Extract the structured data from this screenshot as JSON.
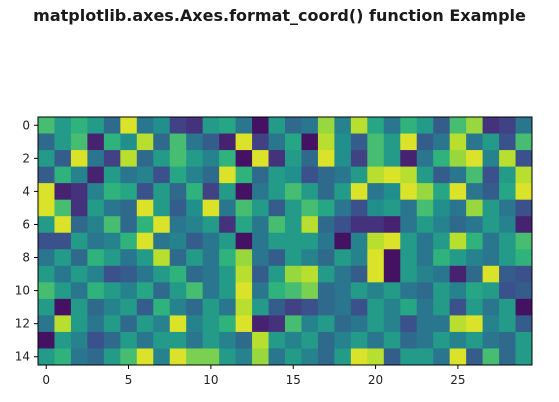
{
  "chart_data": {
    "type": "heatmap",
    "title": "matplotlib.axes.Axes.format_coord() function Example",
    "colormap": "viridis",
    "rows": 15,
    "cols": 30,
    "x_ticks": [
      0,
      5,
      10,
      15,
      20,
      25
    ],
    "y_ticks": [
      0,
      2,
      4,
      6,
      8,
      10,
      12,
      14
    ],
    "values": [
      [
        0.7,
        0.55,
        0.65,
        0.55,
        0.35,
        0.95,
        0.4,
        0.5,
        0.2,
        0.15,
        0.55,
        0.6,
        0.4,
        0.05,
        0.55,
        0.35,
        0.4,
        0.85,
        0.45,
        0.9,
        0.6,
        0.4,
        0.65,
        0.55,
        0.3,
        0.7,
        0.85,
        0.15,
        0.2,
        0.4
      ],
      [
        0.35,
        0.55,
        0.7,
        0.1,
        0.65,
        0.5,
        0.9,
        0.35,
        0.7,
        0.4,
        0.3,
        0.1,
        0.95,
        0.2,
        0.4,
        0.6,
        0.05,
        0.9,
        0.5,
        0.3,
        0.7,
        0.55,
        0.95,
        0.3,
        0.4,
        0.9,
        0.4,
        0.55,
        0.25,
        0.7
      ],
      [
        0.55,
        0.3,
        0.95,
        0.4,
        0.2,
        0.9,
        0.35,
        0.55,
        0.7,
        0.55,
        0.45,
        0.65,
        0.05,
        0.95,
        0.15,
        0.55,
        0.35,
        0.95,
        0.5,
        0.2,
        0.7,
        0.55,
        0.1,
        0.4,
        0.65,
        0.85,
        0.95,
        0.45,
        0.9,
        0.25
      ],
      [
        0.3,
        0.65,
        0.45,
        0.1,
        0.55,
        0.4,
        0.45,
        0.25,
        0.6,
        0.45,
        0.35,
        0.95,
        0.65,
        0.35,
        0.55,
        0.5,
        0.25,
        0.35,
        0.4,
        0.55,
        0.9,
        0.95,
        0.9,
        0.55,
        0.3,
        0.4,
        0.7,
        0.25,
        0.55,
        0.9
      ],
      [
        0.95,
        0.1,
        0.15,
        0.45,
        0.65,
        0.6,
        0.25,
        0.55,
        0.35,
        0.65,
        0.2,
        0.55,
        0.05,
        0.4,
        0.55,
        0.7,
        0.55,
        0.35,
        0.55,
        0.95,
        0.4,
        0.5,
        0.95,
        0.85,
        0.6,
        0.95,
        0.4,
        0.3,
        0.6,
        0.95
      ],
      [
        0.95,
        0.7,
        0.15,
        0.55,
        0.4,
        0.35,
        0.95,
        0.55,
        0.3,
        0.5,
        0.95,
        0.4,
        0.7,
        0.55,
        0.3,
        0.55,
        0.7,
        0.6,
        0.4,
        0.25,
        0.5,
        0.55,
        0.4,
        0.7,
        0.5,
        0.4,
        0.85,
        0.55,
        0.4,
        0.25
      ],
      [
        0.55,
        0.95,
        0.35,
        0.45,
        0.7,
        0.35,
        0.65,
        0.95,
        0.4,
        0.45,
        0.55,
        0.15,
        0.6,
        0.4,
        0.7,
        0.55,
        0.9,
        0.35,
        0.25,
        0.15,
        0.15,
        0.1,
        0.4,
        0.55,
        0.45,
        0.35,
        0.4,
        0.55,
        0.45,
        0.1
      ],
      [
        0.25,
        0.25,
        0.55,
        0.4,
        0.45,
        0.65,
        0.95,
        0.4,
        0.45,
        0.3,
        0.4,
        0.55,
        0.05,
        0.4,
        0.55,
        0.55,
        0.55,
        0.4,
        0.05,
        0.45,
        0.9,
        0.95,
        0.55,
        0.4,
        0.55,
        0.9,
        0.65,
        0.4,
        0.55,
        0.7
      ],
      [
        0.4,
        0.55,
        0.35,
        0.65,
        0.55,
        0.4,
        0.55,
        0.9,
        0.35,
        0.55,
        0.4,
        0.65,
        0.85,
        0.4,
        0.3,
        0.55,
        0.45,
        0.35,
        0.55,
        0.45,
        0.95,
        0.05,
        0.55,
        0.4,
        0.65,
        0.55,
        0.45,
        0.4,
        0.55,
        0.65
      ],
      [
        0.55,
        0.4,
        0.55,
        0.45,
        0.25,
        0.3,
        0.4,
        0.55,
        0.65,
        0.35,
        0.4,
        0.55,
        0.9,
        0.3,
        0.55,
        0.85,
        0.9,
        0.55,
        0.4,
        0.3,
        0.95,
        0.05,
        0.55,
        0.45,
        0.4,
        0.1,
        0.35,
        0.95,
        0.3,
        0.25
      ],
      [
        0.7,
        0.55,
        0.4,
        0.65,
        0.55,
        0.45,
        0.6,
        0.35,
        0.55,
        0.7,
        0.4,
        0.55,
        0.95,
        0.4,
        0.65,
        0.7,
        0.8,
        0.35,
        0.4,
        0.55,
        0.45,
        0.55,
        0.4,
        0.35,
        0.55,
        0.45,
        0.6,
        0.55,
        0.25,
        0.3
      ],
      [
        0.55,
        0.05,
        0.55,
        0.35,
        0.45,
        0.55,
        0.3,
        0.65,
        0.45,
        0.35,
        0.55,
        0.4,
        0.9,
        0.55,
        0.3,
        0.2,
        0.25,
        0.35,
        0.4,
        0.25,
        0.55,
        0.45,
        0.6,
        0.4,
        0.55,
        0.25,
        0.55,
        0.4,
        0.55,
        0.05
      ],
      [
        0.4,
        0.9,
        0.55,
        0.4,
        0.55,
        0.35,
        0.55,
        0.45,
        0.95,
        0.45,
        0.55,
        0.65,
        0.95,
        0.1,
        0.15,
        0.7,
        0.45,
        0.55,
        0.35,
        0.4,
        0.55,
        0.45,
        0.25,
        0.4,
        0.4,
        0.9,
        0.95,
        0.45,
        0.55,
        0.3
      ],
      [
        0.05,
        0.55,
        0.45,
        0.25,
        0.35,
        0.55,
        0.4,
        0.55,
        0.55,
        0.4,
        0.55,
        0.45,
        0.35,
        0.9,
        0.55,
        0.45,
        0.55,
        0.35,
        0.45,
        0.55,
        0.4,
        0.55,
        0.35,
        0.4,
        0.55,
        0.45,
        0.55,
        0.4,
        0.35,
        0.55
      ],
      [
        0.55,
        0.65,
        0.4,
        0.35,
        0.55,
        0.7,
        0.95,
        0.45,
        0.95,
        0.8,
        0.8,
        0.55,
        0.45,
        0.85,
        0.4,
        0.55,
        0.45,
        0.35,
        0.55,
        0.95,
        0.9,
        0.3,
        0.55,
        0.55,
        0.4,
        0.95,
        0.3,
        0.7,
        0.35,
        0.55
      ]
    ]
  }
}
